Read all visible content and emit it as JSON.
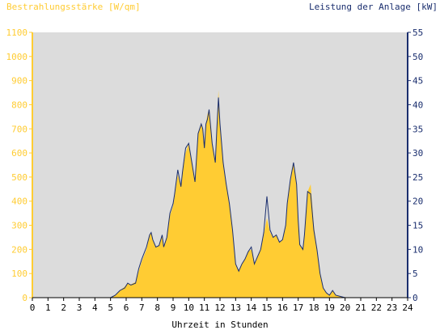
{
  "chart_data": {
    "type": "area",
    "left_axis_title": "Bestrahlungsstärke [W/qm]",
    "right_axis_title": "Leistung der Anlage [kW]",
    "xlabel": "Uhrzeit in Stunden",
    "xlim": [
      0,
      24
    ],
    "ylim_left": [
      0,
      1100
    ],
    "ylim_right": [
      0,
      55
    ],
    "x_ticks": [
      "0",
      "1",
      "2",
      "3",
      "4",
      "5",
      "6",
      "7",
      "8",
      "9",
      "10",
      "11",
      "12",
      "13",
      "14",
      "15",
      "16",
      "17",
      "18",
      "19",
      "20",
      "21",
      "22",
      "23",
      "24"
    ],
    "y_ticks_left": [
      "0",
      "100",
      "200",
      "300",
      "400",
      "500",
      "600",
      "700",
      "800",
      "900",
      "1000",
      "1100"
    ],
    "y_ticks_right": [
      "0",
      "5",
      "10",
      "15",
      "20",
      "25",
      "30",
      "35",
      "40",
      "45",
      "50",
      "55"
    ],
    "grid": false,
    "colors": {
      "irradiance_fill": "#ffcc33",
      "power_line": "#1a2e6e",
      "plot_background": "#dcdcdc",
      "left_axis_text": "#ffcc33",
      "right_axis_text": "#1a2e6e"
    },
    "series": [
      {
        "name": "Bestrahlungsstärke [W/qm]",
        "axis": "left",
        "style": "area",
        "x": [
          0,
          5.0,
          5.3,
          5.6,
          5.9,
          6.1,
          6.3,
          6.6,
          6.8,
          7.0,
          7.3,
          7.5,
          7.6,
          7.7,
          7.9,
          8.1,
          8.3,
          8.4,
          8.6,
          8.8,
          9.0,
          9.1,
          9.3,
          9.5,
          9.6,
          9.8,
          10.0,
          10.2,
          10.4,
          10.5,
          10.6,
          10.8,
          10.9,
          11.0,
          11.1,
          11.2,
          11.3,
          11.5,
          11.7,
          11.8,
          11.9,
          12.0,
          12.2,
          12.4,
          12.6,
          12.8,
          13.0,
          13.2,
          13.4,
          13.6,
          13.8,
          14.0,
          14.2,
          14.4,
          14.6,
          14.8,
          15.0,
          15.2,
          15.4,
          15.6,
          15.8,
          16.0,
          16.2,
          16.3,
          16.5,
          16.7,
          16.9,
          17.0,
          17.1,
          17.3,
          17.4,
          17.6,
          17.8,
          18.0,
          18.2,
          18.4,
          18.6,
          18.8,
          19.0,
          19.2,
          19.4,
          20.0,
          24
        ],
        "y": [
          0,
          0,
          10,
          30,
          45,
          60,
          55,
          65,
          110,
          150,
          200,
          260,
          270,
          240,
          210,
          215,
          260,
          210,
          250,
          340,
          380,
          420,
          510,
          460,
          520,
          600,
          640,
          560,
          480,
          570,
          680,
          720,
          700,
          620,
          720,
          760,
          780,
          640,
          560,
          700,
          860,
          720,
          560,
          470,
          390,
          280,
          140,
          110,
          140,
          160,
          190,
          200,
          140,
          170,
          200,
          260,
          330,
          270,
          250,
          260,
          230,
          240,
          290,
          380,
          480,
          560,
          470,
          320,
          220,
          200,
          260,
          440,
          470,
          300,
          200,
          100,
          40,
          20,
          10,
          30,
          10,
          0,
          0
        ]
      },
      {
        "name": "Leistung der Anlage [kW]",
        "axis": "right",
        "style": "line",
        "x": [
          0,
          5.0,
          5.3,
          5.6,
          5.9,
          6.1,
          6.3,
          6.6,
          6.8,
          7.0,
          7.3,
          7.5,
          7.6,
          7.7,
          7.9,
          8.1,
          8.3,
          8.4,
          8.6,
          8.8,
          9.0,
          9.1,
          9.3,
          9.5,
          9.6,
          9.8,
          10.0,
          10.2,
          10.4,
          10.5,
          10.6,
          10.8,
          10.9,
          11.0,
          11.1,
          11.2,
          11.3,
          11.5,
          11.7,
          11.8,
          11.9,
          12.0,
          12.2,
          12.4,
          12.6,
          12.8,
          13.0,
          13.2,
          13.4,
          13.6,
          13.8,
          14.0,
          14.2,
          14.4,
          14.6,
          14.8,
          15.0,
          15.2,
          15.4,
          15.6,
          15.8,
          16.0,
          16.2,
          16.3,
          16.5,
          16.7,
          16.9,
          17.0,
          17.1,
          17.3,
          17.4,
          17.6,
          17.8,
          18.0,
          18.2,
          18.4,
          18.6,
          18.8,
          19.0,
          19.2,
          19.4,
          20.0,
          24
        ],
        "y": [
          0,
          0,
          0.5,
          1.5,
          2.0,
          3.0,
          2.6,
          3.0,
          6.0,
          8.0,
          10.5,
          13.0,
          13.5,
          12.0,
          10.5,
          10.8,
          13.0,
          10.5,
          12.5,
          17.5,
          19.5,
          21.5,
          26.5,
          23.0,
          26.0,
          31.0,
          32.0,
          28.0,
          24.0,
          29.0,
          34.0,
          36.0,
          35.0,
          31.0,
          36.0,
          37.0,
          39.0,
          32.0,
          28.0,
          35.0,
          41.5,
          36.0,
          28.0,
          23.5,
          19.5,
          14.0,
          7.0,
          5.5,
          7.0,
          8.0,
          9.5,
          10.5,
          7.0,
          8.5,
          10.0,
          13.5,
          21.0,
          14.0,
          12.5,
          13.0,
          11.5,
          12.0,
          15.0,
          19.5,
          24.5,
          28.0,
          23.5,
          16.0,
          11.0,
          10.0,
          13.0,
          22.0,
          21.5,
          14.0,
          10.0,
          5.0,
          2.0,
          1.0,
          0.5,
          1.5,
          0.5,
          0,
          0
        ]
      }
    ]
  }
}
